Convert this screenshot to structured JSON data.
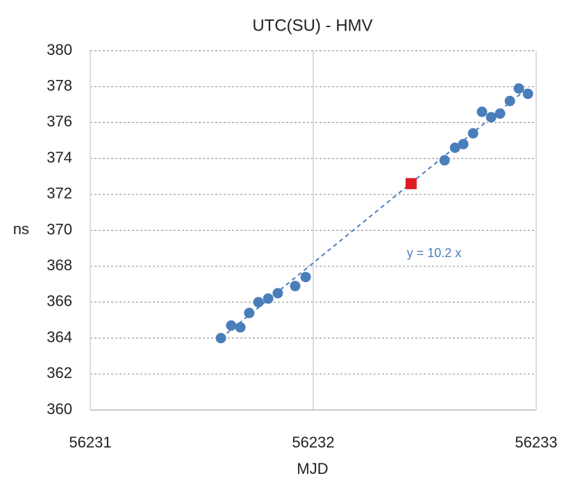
{
  "chart_data": {
    "type": "scatter",
    "title": "UTC(SU) - HMV",
    "x_label": "MJD",
    "y_label": "ns",
    "annotation": "y = 10.2 x",
    "xlim": [
      56231,
      56233
    ],
    "xticks": [
      56231,
      56232,
      56233
    ],
    "ylim": [
      360,
      380
    ],
    "yticks": [
      360,
      362,
      364,
      366,
      368,
      370,
      372,
      374,
      376,
      378,
      380
    ],
    "grid": true,
    "series": [
      {
        "color": "#4a7ebb",
        "marker": "circle",
        "x": [
          56231.586,
          56231.632,
          56231.673,
          56231.713,
          56231.754,
          56231.798,
          56231.841,
          56231.919,
          56231.966,
          56232.589,
          56232.636,
          56232.673,
          56232.717,
          56232.757,
          56232.798,
          56232.838,
          56232.882,
          56232.922,
          56232.963
        ],
        "values": [
          364.0,
          364.7,
          364.6,
          365.4,
          366.0,
          366.2,
          366.5,
          366.9,
          367.4,
          373.9,
          374.6,
          374.8,
          375.4,
          376.6,
          376.3,
          376.5,
          377.2,
          377.9,
          377.6
        ]
      },
      {
        "color": "#e01b24",
        "marker": "square",
        "x": [
          56232.439
        ],
        "values": [
          372.6
        ]
      }
    ],
    "trendline": {
      "color": "#4a7ebb",
      "x": [
        56231.586,
        56232.96
      ],
      "values": [
        364.0,
        377.9
      ]
    }
  }
}
